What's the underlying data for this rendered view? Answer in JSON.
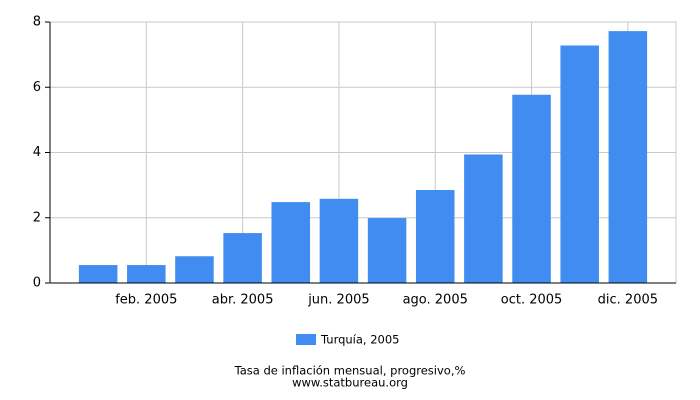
{
  "chart_data": {
    "type": "bar",
    "categories": [
      null,
      "feb. 2005",
      null,
      "abr. 2005",
      null,
      "jun. 2005",
      null,
      "ago. 2005",
      null,
      "oct. 2005",
      null,
      "dic. 2005"
    ],
    "series": [
      {
        "name": "Turquía, 2005",
        "color": "#418cf0",
        "values": [
          0.55,
          0.55,
          0.82,
          1.53,
          2.48,
          2.58,
          1.99,
          2.85,
          3.94,
          5.77,
          7.28,
          7.72
        ]
      }
    ],
    "ylim": [
      0,
      8
    ],
    "yticks": [
      0,
      2,
      4,
      6,
      8
    ],
    "grid": true,
    "caption": "Tasa de inflación mensual, progresivo,%",
    "source": "www.statbureau.org"
  }
}
